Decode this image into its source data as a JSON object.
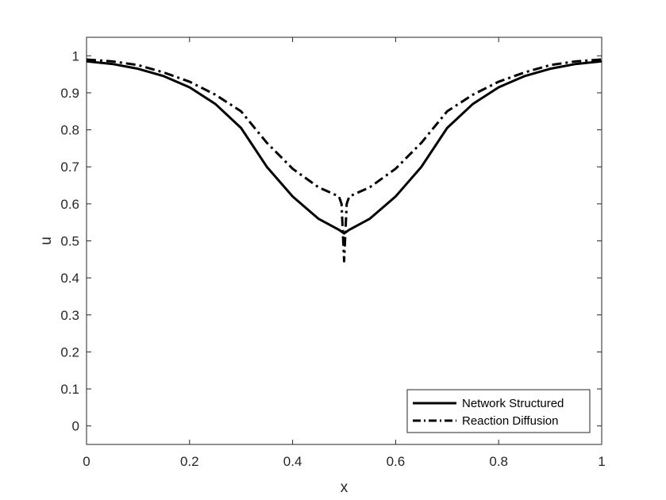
{
  "chart_data": {
    "type": "line",
    "xlabel": "x",
    "ylabel": "u",
    "xlim": [
      0,
      1
    ],
    "ylim": [
      -0.05,
      1.05
    ],
    "xticks": [
      "0",
      "0.2",
      "0.4",
      "0.6",
      "0.8",
      "1"
    ],
    "yticks": [
      "0",
      "0.1",
      "0.2",
      "0.3",
      "0.4",
      "0.5",
      "0.6",
      "0.7",
      "0.8",
      "0.9",
      "1"
    ],
    "grid": false,
    "legend_position": "bottom-right",
    "series": [
      {
        "name": "Network Structured",
        "style": "solid",
        "color": "#000000",
        "x": [
          0,
          0.05,
          0.1,
          0.15,
          0.2,
          0.25,
          0.3,
          0.35,
          0.4,
          0.45,
          0.49,
          0.5,
          0.51,
          0.55,
          0.6,
          0.65,
          0.7,
          0.75,
          0.8,
          0.85,
          0.9,
          0.95,
          1
        ],
        "y": [
          0.985,
          0.978,
          0.965,
          0.945,
          0.915,
          0.87,
          0.805,
          0.7,
          0.62,
          0.56,
          0.53,
          0.52,
          0.53,
          0.56,
          0.62,
          0.7,
          0.805,
          0.87,
          0.915,
          0.945,
          0.965,
          0.978,
          0.985
        ]
      },
      {
        "name": "Reaction Diffusion",
        "style": "dashdot",
        "color": "#000000",
        "x": [
          0,
          0.05,
          0.1,
          0.15,
          0.2,
          0.25,
          0.3,
          0.35,
          0.4,
          0.45,
          0.49,
          0.495,
          0.5,
          0.505,
          0.51,
          0.55,
          0.6,
          0.65,
          0.7,
          0.75,
          0.8,
          0.85,
          0.9,
          0.95,
          1
        ],
        "y": [
          0.99,
          0.985,
          0.975,
          0.955,
          0.93,
          0.895,
          0.85,
          0.765,
          0.695,
          0.645,
          0.62,
          0.6,
          0.445,
          0.6,
          0.62,
          0.645,
          0.695,
          0.765,
          0.85,
          0.895,
          0.93,
          0.955,
          0.975,
          0.985,
          0.99
        ]
      }
    ]
  }
}
